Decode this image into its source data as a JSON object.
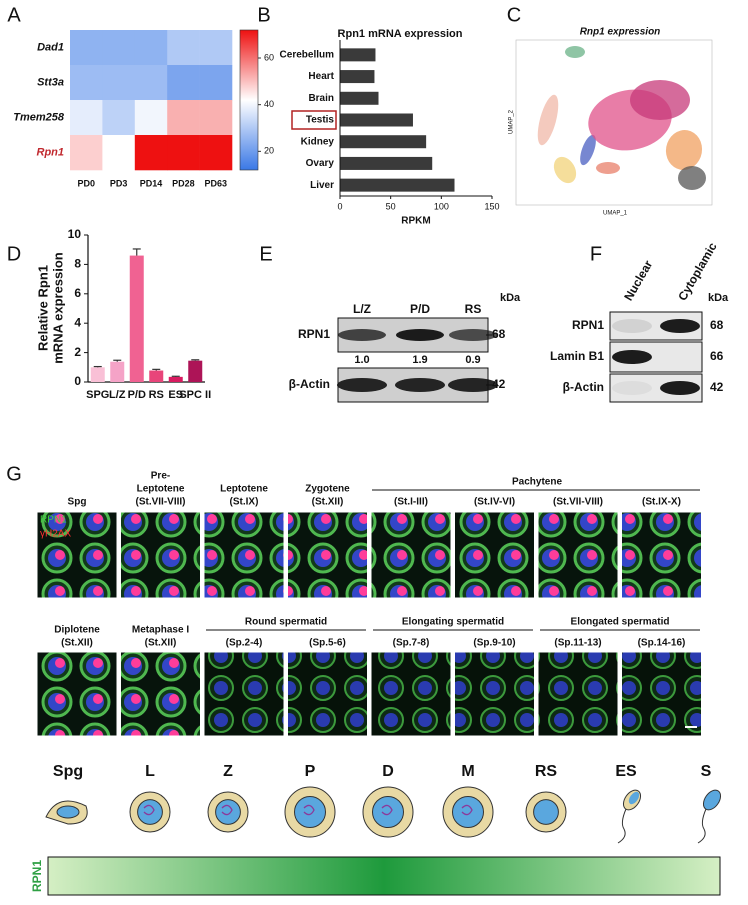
{
  "chart_data": [
    {
      "type": "heatmap",
      "rows": [
        "Dad1",
        "Stt3a",
        "Tmem258",
        "Rpn1"
      ],
      "columns": [
        "PD0",
        "PD3",
        "PD14",
        "PD28",
        "PD63"
      ],
      "values": [
        [
          25,
          25,
          25,
          30,
          30
        ],
        [
          27,
          27,
          27,
          22,
          22
        ],
        [
          38,
          32,
          40,
          52,
          52
        ],
        [
          48,
          42,
          72,
          72,
          72
        ]
      ],
      "zlim": [
        12,
        72
      ],
      "zticks": [
        20,
        40,
        60
      ],
      "colors": [
        "#3a78e6",
        "#ffffff",
        "#ee1111"
      ],
      "highlight_row": 3
    },
    {
      "type": "barh",
      "title": "Rpn1  mRNA expression",
      "categories": [
        "Cerebellum",
        "Heart",
        "Brain",
        "Testis",
        "Kidney",
        "Ovary",
        "Liver"
      ],
      "values": [
        35,
        34,
        38,
        72,
        85,
        91,
        113
      ],
      "xlim": [
        0,
        150
      ],
      "xticks": [
        0,
        50,
        100,
        150
      ],
      "xlabel": "RPKM",
      "color": "#3a3a3a",
      "highlight": 3
    },
    {
      "type": "bar",
      "categories": [
        "SPG",
        "L/Z",
        "P/D",
        "RS",
        "ES",
        "SPC II"
      ],
      "values": [
        1.0,
        1.38,
        8.6,
        0.78,
        0.35,
        1.45
      ],
      "errors": [
        0.05,
        0.1,
        0.45,
        0.08,
        0.04,
        0.06
      ],
      "colors": [
        "#f9c0d6",
        "#f5a3c7",
        "#f06292",
        "#e8457a",
        "#d81b60",
        "#ad1457"
      ],
      "ylim": [
        0,
        10
      ],
      "yticks": [
        0,
        2,
        4,
        6,
        8,
        10
      ],
      "ylabel": [
        "Relative Rpn1",
        "mRNA expression"
      ]
    }
  ],
  "panels": {
    "letters": [
      "A",
      "B",
      "C",
      "D",
      "E",
      "F",
      "G"
    ],
    "umap": {
      "title": "Rnp1 expression",
      "xlabel": "UMAP_1",
      "ylabel": "UMAP_2"
    },
    "blot_e": {
      "lanes": [
        "L/Z",
        "P/D",
        "RS"
      ],
      "unit": "kDa",
      "proteins": [
        "RPN1",
        "β-Actin"
      ],
      "sizes": [
        "68",
        "42"
      ],
      "quant": [
        "1.0",
        "1.9",
        "0.9"
      ]
    },
    "blot_f": {
      "lanes": [
        "Nuclear",
        "Cytoplamic"
      ],
      "unit": "kDa",
      "proteins": [
        "RPN1",
        "Lamin B1",
        "β-Actin"
      ],
      "sizes": [
        "68",
        "66",
        "42"
      ]
    },
    "micro": {
      "row1_labels": [
        [
          "Spg"
        ],
        [
          "Pre-",
          "Leptotene",
          "(St.VII-VIII)"
        ],
        [
          "Leptotene",
          "(St.IX)"
        ],
        [
          "Zygotene",
          "(St.XII)"
        ]
      ],
      "pachytene": "Pachytene",
      "pachytene_stages": [
        "(St.I-III)",
        "(St.IV-VI)",
        "(St.VII-VIII)",
        "(St.IX-X)"
      ],
      "stain": [
        "RPN1",
        "γH2AX"
      ],
      "row2_labels": [
        [
          "Diplotene",
          "(St.XII)"
        ],
        [
          "Metaphase I",
          "(St.XII)"
        ]
      ],
      "groups": [
        {
          "name": "Round spermatid",
          "stages": [
            "(Sp.2-4)",
            "(Sp.5-6)"
          ]
        },
        {
          "name": "Elongating spermatid",
          "stages": [
            "(Sp.7-8)",
            "(Sp.9-10)"
          ]
        },
        {
          "name": "Elongated spermatid",
          "stages": [
            "(Sp.11-13)",
            "(Sp.14-16)"
          ]
        }
      ]
    },
    "schematic": {
      "stages": [
        "Spg",
        "L",
        "Z",
        "P",
        "D",
        "M",
        "RS",
        "ES",
        "S"
      ],
      "bar_label": "RPN1"
    }
  }
}
